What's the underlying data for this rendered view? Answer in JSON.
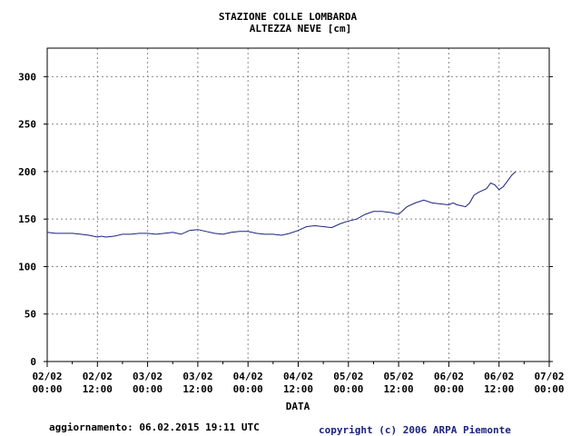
{
  "chart_data": {
    "type": "line",
    "title": "STAZIONE COLLE LOMBARDA",
    "subtitle": "ALTEZZA NEVE [cm]",
    "xlabel": "DATA",
    "ylabel": "",
    "ylim": [
      0,
      330
    ],
    "yticks": [
      0,
      50,
      100,
      150,
      200,
      250,
      300
    ],
    "xlim_hours": [
      0,
      120
    ],
    "xticks": [
      {
        "date": "02/02",
        "time": "00:00"
      },
      {
        "date": "02/02",
        "time": "12:00"
      },
      {
        "date": "03/02",
        "time": "00:00"
      },
      {
        "date": "03/02",
        "time": "12:00"
      },
      {
        "date": "04/02",
        "time": "00:00"
      },
      {
        "date": "04/02",
        "time": "12:00"
      },
      {
        "date": "05/02",
        "time": "00:00"
      },
      {
        "date": "05/02",
        "time": "12:00"
      },
      {
        "date": "06/02",
        "time": "00:00"
      },
      {
        "date": "06/02",
        "time": "12:00"
      },
      {
        "date": "07/02",
        "time": "00:00"
      }
    ],
    "grid": true,
    "series_color": "#1a237e",
    "series": [
      {
        "name": "",
        "x": [
          0,
          2,
          4,
          6,
          8,
          10,
          12,
          13,
          14,
          16,
          18,
          20,
          22,
          24,
          26,
          28,
          30,
          32,
          34,
          36,
          38,
          40,
          42,
          44,
          46,
          48,
          50,
          52,
          54,
          56,
          58,
          60,
          62,
          64,
          66,
          68,
          70,
          72,
          74,
          76,
          78,
          80,
          82,
          84,
          86,
          88,
          90,
          92,
          94,
          96,
          97,
          98,
          99,
          100,
          101,
          102,
          103,
          104,
          105,
          106,
          107,
          108,
          109,
          110,
          111,
          112
        ],
        "values": [
          136,
          135,
          135,
          135,
          134,
          133,
          131,
          132,
          131,
          132,
          134,
          134,
          135,
          135,
          134,
          135,
          136,
          134,
          138,
          139,
          137,
          135,
          134,
          136,
          137,
          137,
          135,
          134,
          134,
          133,
          135,
          138,
          142,
          143,
          142,
          141,
          145,
          148,
          150,
          155,
          158,
          158,
          157,
          155,
          163,
          167,
          170,
          167,
          166,
          165,
          167,
          165,
          164,
          163,
          167,
          175,
          178,
          180,
          182,
          188,
          186,
          181,
          184,
          190,
          196,
          200
        ]
      }
    ]
  },
  "footer": {
    "updated": "aggiornamento: 06.02.2015 19:11 UTC",
    "copyright": "copyright (c) 2006 ARPA Piemonte"
  }
}
